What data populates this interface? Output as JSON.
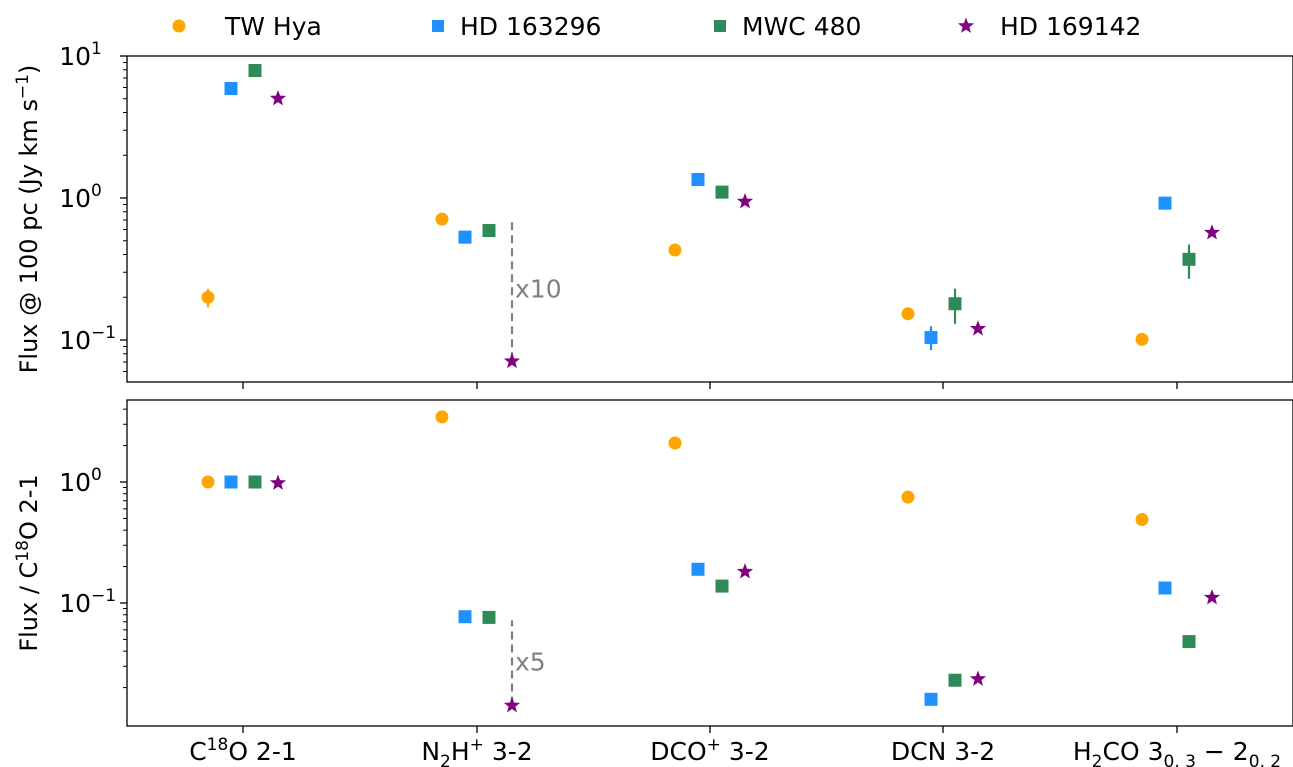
{
  "chart_data": [
    {
      "type": "scatter",
      "yscale": "log",
      "ylabel": "Flux @ 100 pc (Jy km s⁻¹)",
      "ylim": [
        0.05,
        10
      ],
      "yticks": [
        {
          "v": 10,
          "m": "10",
          "e": "1"
        },
        {
          "v": 1,
          "m": "10",
          "e": "0"
        },
        {
          "v": 0.1,
          "m": "10",
          "e": "−1"
        }
      ],
      "categories": [
        "C¹⁸O 2-1",
        "N₂H⁺ 3-2",
        "DCO⁺ 3-2",
        "DCN 3-2",
        "H₂CO 3₀,₃ − 2₀,₂"
      ],
      "series": [
        {
          "name": "TW Hya",
          "marker": "circle",
          "color": "#FFA500",
          "values": [
            0.2,
            0.71,
            0.43,
            0.153,
            0.101
          ],
          "err": [
            [
              0.17,
              0.23
            ],
            null,
            null,
            null,
            null
          ]
        },
        {
          "name": "HD 163296",
          "marker": "square",
          "color": "#1E90FF",
          "values": [
            5.9,
            0.53,
            1.35,
            0.104,
            0.92
          ],
          "err": [
            null,
            null,
            null,
            [
              0.085,
              0.125
            ],
            null
          ]
        },
        {
          "name": "MWC 480",
          "marker": "square",
          "color": "#2E8B57",
          "values": [
            7.9,
            0.59,
            1.1,
            0.18,
            0.37
          ],
          "err": [
            null,
            null,
            null,
            [
              0.13,
              0.23
            ],
            [
              0.27,
              0.47
            ]
          ]
        },
        {
          "name": "HD 169142",
          "marker": "star",
          "color": "#800080",
          "values": [
            5.1,
            0.072,
            0.96,
            0.122,
            0.58
          ],
          "err": [
            null,
            null,
            null,
            null,
            null
          ]
        }
      ],
      "annotation": {
        "text": "x10",
        "category_index": 1,
        "from": 0.072,
        "to": 0.72
      }
    },
    {
      "type": "scatter",
      "yscale": "log",
      "ylabel": "Flux / C¹⁸O 2-1",
      "ylim": [
        0.012,
        4.5
      ],
      "yticks": [
        {
          "v": 1,
          "m": "10",
          "e": "0"
        },
        {
          "v": 0.1,
          "m": "10",
          "e": "−1"
        }
      ],
      "categories": [
        "C¹⁸O 2-1",
        "N₂H⁺ 3-2",
        "DCO⁺ 3-2",
        "DCN 3-2",
        "H₂CO 3₀,₃ − 2₀,₂"
      ],
      "series": [
        {
          "name": "TW Hya",
          "marker": "circle",
          "color": "#FFA500",
          "values": [
            1.0,
            3.45,
            2.1,
            0.75,
            0.49
          ]
        },
        {
          "name": "HD 163296",
          "marker": "square",
          "color": "#1E90FF",
          "values": [
            1.0,
            0.077,
            0.19,
            0.016,
            0.133
          ]
        },
        {
          "name": "MWC 480",
          "marker": "square",
          "color": "#2E8B57",
          "values": [
            1.0,
            0.076,
            0.138,
            0.023,
            0.048
          ]
        },
        {
          "name": "HD 169142",
          "marker": "star",
          "color": "#800080",
          "values": [
            1.0,
            0.0145,
            0.185,
            0.024,
            0.113
          ]
        }
      ],
      "annotation": {
        "text": "x5",
        "category_index": 1,
        "from": 0.0145,
        "to": 0.072
      }
    }
  ],
  "legend": {
    "placement": "top",
    "items": [
      {
        "label": "TW Hya",
        "marker": "circle",
        "color": "#FFA500"
      },
      {
        "label": "HD 163296",
        "marker": "square",
        "color": "#1E90FF"
      },
      {
        "label": "MWC 480",
        "marker": "square",
        "color": "#2E8B57"
      },
      {
        "label": "HD 169142",
        "marker": "star",
        "color": "#800080"
      }
    ]
  },
  "axis_labels": {
    "top_y": "Flux @ 100 pc (Jy km s",
    "top_y_sup": "−1",
    "top_y_tail": ")",
    "bottom_y": "Flux / C",
    "bottom_y_sup": "18",
    "bottom_y_tail": "O 2-1"
  },
  "xtick_labels": {
    "c18o": {
      "a": "C",
      "sup": "18",
      "b": "O 2-1"
    },
    "n2h": {
      "a": "N",
      "sub": "2",
      "b": "H",
      "sup": "+",
      "c": " 3-2"
    },
    "dco": {
      "a": "DCO",
      "sup": "+",
      "b": " 3-2"
    },
    "dcn": {
      "a": "DCN 3-2"
    },
    "h2co": {
      "a": "H",
      "sub": "2",
      "b": "CO 3",
      "sub2": "0, 3",
      "c": " − 2",
      "sub3": "0, 2"
    }
  }
}
